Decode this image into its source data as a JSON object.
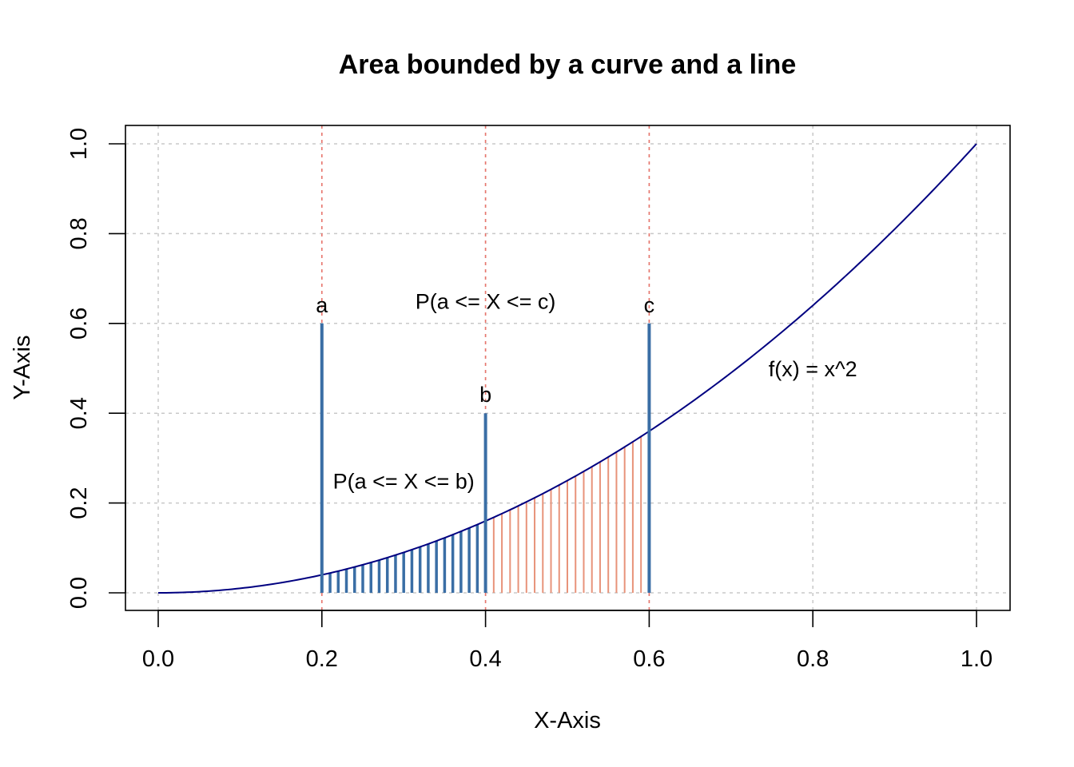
{
  "chart_data": {
    "type": "line",
    "title": "Area bounded by a curve and a line",
    "xlabel": "X-Axis",
    "ylabel": "Y-Axis",
    "xlim": [
      0,
      1
    ],
    "ylim": [
      0,
      1
    ],
    "grid": true,
    "x_ticks": [
      0,
      0.2,
      0.4,
      0.6,
      0.8,
      1.0
    ],
    "x_tick_labels": [
      "0.0",
      "0.2",
      "0.4",
      "0.6",
      "0.8",
      "1.0"
    ],
    "y_ticks": [
      0,
      0.2,
      0.4,
      0.6,
      0.8,
      1.0
    ],
    "y_tick_labels": [
      "0.0",
      "0.2",
      "0.4",
      "0.6",
      "0.8",
      "1.0"
    ],
    "curve": {
      "function": "x^2",
      "label": "f(x) = x^2",
      "from": 0,
      "to": 1,
      "color": "#000080"
    },
    "reference_lines": [
      {
        "x": 0.2,
        "color": "#e8766d"
      },
      {
        "x": 0.4,
        "color": "#e8766d"
      },
      {
        "x": 0.6,
        "color": "#e8766d"
      }
    ],
    "markers": [
      {
        "label": "a",
        "x": 0.2,
        "height": 0.6,
        "color": "#3a6ea5"
      },
      {
        "label": "b",
        "x": 0.4,
        "height": 0.4,
        "color": "#3a6ea5"
      },
      {
        "label": "c",
        "x": 0.6,
        "height": 0.6,
        "color": "#3a6ea5"
      }
    ],
    "shaded_regions": [
      {
        "from": 0.2,
        "to": 0.4,
        "step": 0.01,
        "color": "#3a6ea5",
        "label": "P(a <= X <= b)",
        "label_at": [
          0.3,
          0.25
        ]
      },
      {
        "from": 0.4,
        "to": 0.6,
        "step": 0.01,
        "color": "#e8937a",
        "label": "P(a <= X <= c)",
        "label_at": [
          0.4,
          0.65
        ]
      }
    ],
    "curve_label_at": [
      0.8,
      0.5
    ]
  }
}
